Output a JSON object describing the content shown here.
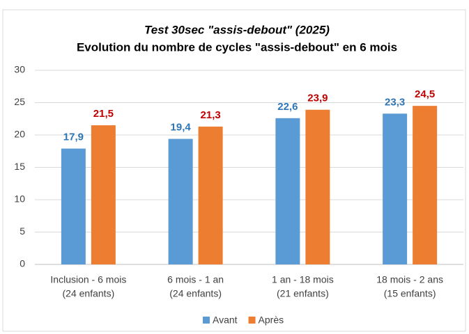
{
  "chart_data": {
    "type": "bar",
    "title": "Test 30sec \"assis-debout\" (2025)",
    "subtitle": "Evolution du nombre de cycles \"assis-debout\" en 6 mois",
    "categories": [
      [
        "Inclusion - 6 mois",
        "(24 enfants)"
      ],
      [
        "6 mois - 1 an",
        "(24 enfants)"
      ],
      [
        "1 an - 18 mois",
        "(21 enfants)"
      ],
      [
        "18 mois - 2 ans",
        "(15 enfants)"
      ]
    ],
    "series": [
      {
        "name": "Avant",
        "color": "#5b9bd5",
        "label_color": "#2e75b6",
        "values": [
          17.9,
          19.4,
          22.6,
          23.3
        ],
        "value_labels": [
          "17,9",
          "19,4",
          "22,6",
          "23,3"
        ]
      },
      {
        "name": "Après",
        "color": "#ed7d31",
        "label_color": "#c00000",
        "values": [
          21.5,
          21.3,
          23.9,
          24.5
        ],
        "value_labels": [
          "21,5",
          "21,3",
          "23,9",
          "24,5"
        ]
      }
    ],
    "ylim": [
      0,
      30
    ],
    "yticks": [
      0,
      5,
      10,
      15,
      20,
      25,
      30
    ],
    "grid": true,
    "legend": "bottom"
  }
}
